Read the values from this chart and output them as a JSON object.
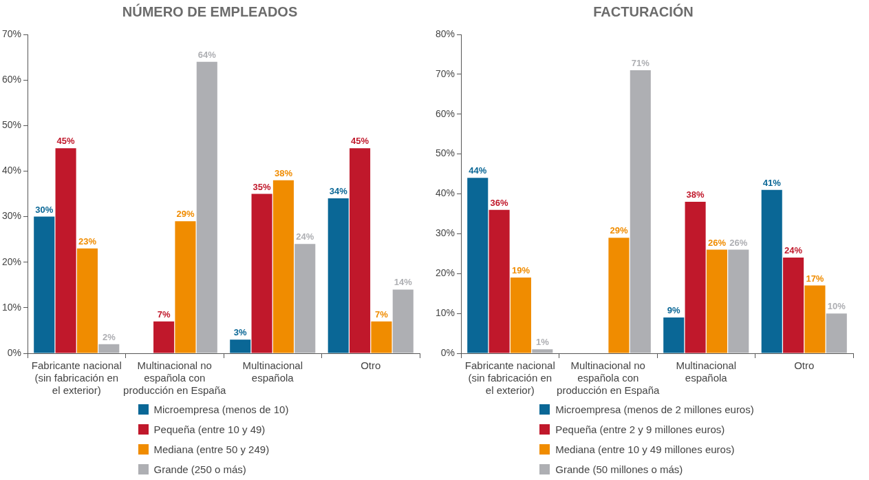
{
  "chart_data": [
    {
      "type": "bar",
      "title": "NÚMERO DE EMPLEADOS",
      "categories": [
        "Fabricante nacional (sin fabricación en el exterior)",
        "Multinacional no española con producción en España",
        "Multinacional española",
        "Otro"
      ],
      "ylim": [
        0,
        70
      ],
      "yticks": [
        {
          "value": 0,
          "label": "0%"
        },
        {
          "value": 10,
          "label": "10%"
        },
        {
          "value": 20,
          "label": "20%"
        },
        {
          "value": 30,
          "label": "30%"
        },
        {
          "value": 40,
          "label": "40%"
        },
        {
          "value": 50,
          "label": "50%"
        },
        {
          "value": 60,
          "label": "60%"
        },
        {
          "value": 70,
          "label": "70%"
        }
      ],
      "grid": false,
      "legend": "bottom",
      "series": [
        {
          "name": "Microempresa (menos de 10)",
          "color": "#0a6796",
          "values": [
            30,
            null,
            3,
            34
          ],
          "value_labels": [
            "30%",
            null,
            "3%",
            "34%"
          ]
        },
        {
          "name": "Pequeña (entre 10 y 49)",
          "color": "#c0182b",
          "values": [
            45,
            7,
            35,
            45
          ],
          "value_labels": [
            "45%",
            "7%",
            "35%",
            "45%"
          ]
        },
        {
          "name": "Mediana (entre 50 y 249)",
          "color": "#f08c00",
          "values": [
            23,
            29,
            38,
            7
          ],
          "value_labels": [
            "23%",
            "29%",
            "38%",
            "7%"
          ]
        },
        {
          "name": "Grande (250 o más)",
          "color": "#aeafb3",
          "values": [
            2,
            64,
            24,
            14
          ],
          "value_labels": [
            "2%",
            "64%",
            "24%",
            "14%"
          ]
        }
      ]
    },
    {
      "type": "bar",
      "title": "FACTURACIÓN",
      "categories": [
        "Fabricante nacional (sin fabricación en el exterior)",
        "Multinacional no española con producción en España",
        "Multinacional española",
        "Otro"
      ],
      "ylim": [
        0,
        80
      ],
      "yticks": [
        {
          "value": 0,
          "label": "0%"
        },
        {
          "value": 10,
          "label": "10%"
        },
        {
          "value": 20,
          "label": "20%"
        },
        {
          "value": 30,
          "label": "30%"
        },
        {
          "value": 40,
          "label": "40%"
        },
        {
          "value": 50,
          "label": "50%"
        },
        {
          "value": 60,
          "label": "60%"
        },
        {
          "value": 70,
          "label": "70%"
        },
        {
          "value": 80,
          "label": "80%"
        }
      ],
      "grid": false,
      "legend": "bottom",
      "series": [
        {
          "name": "Microempresa (menos de 2 millones euros)",
          "color": "#0a6796",
          "values": [
            44,
            null,
            9,
            41
          ],
          "value_labels": [
            "44%",
            null,
            "9%",
            "41%"
          ]
        },
        {
          "name": "Pequeña (entre 2 y 9 millones euros)",
          "color": "#c0182b",
          "values": [
            36,
            null,
            38,
            24
          ],
          "value_labels": [
            "36%",
            null,
            "38%",
            "24%"
          ]
        },
        {
          "name": "Mediana (entre 10 y 49 millones euros)",
          "color": "#f08c00",
          "values": [
            19,
            29,
            26,
            17
          ],
          "value_labels": [
            "19%",
            "29%",
            "26%",
            "17%"
          ]
        },
        {
          "name": "Grande (50 millones o más)",
          "color": "#aeafb3",
          "values": [
            1,
            71,
            26,
            10
          ],
          "value_labels": [
            "1%",
            "71%",
            "26%",
            "10%"
          ]
        }
      ]
    }
  ]
}
